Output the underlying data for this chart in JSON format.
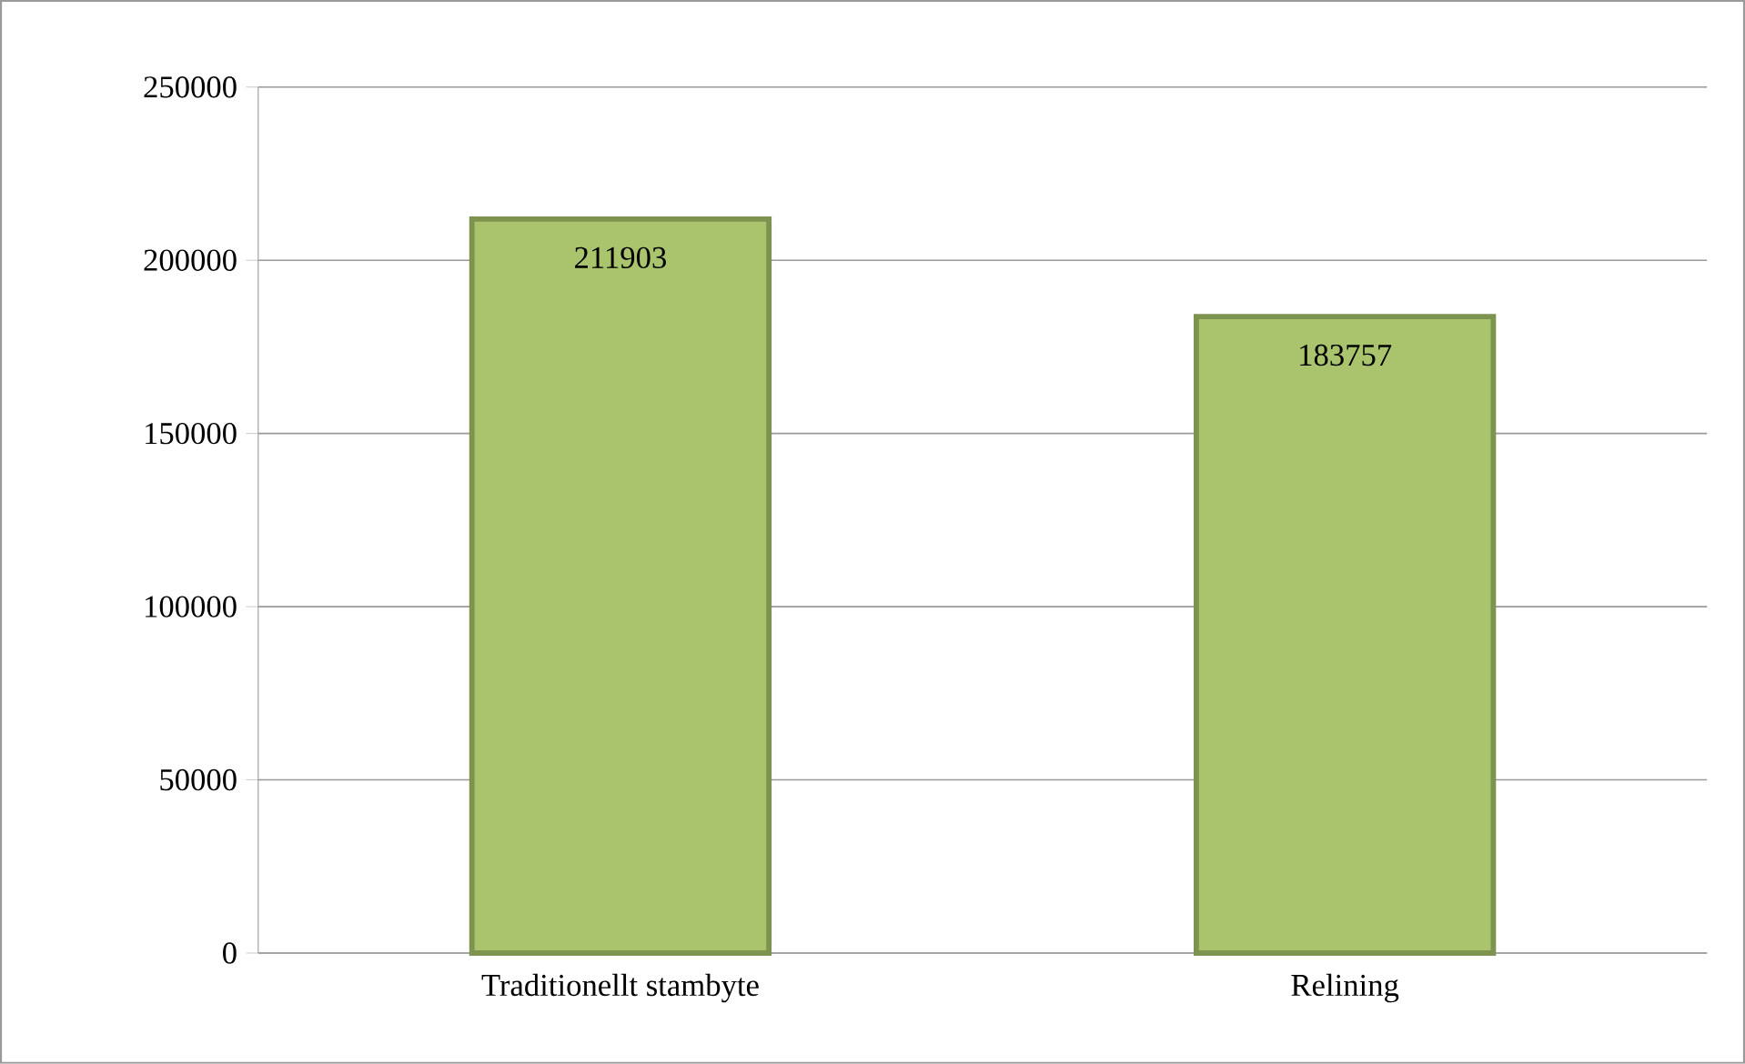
{
  "chart_data": {
    "type": "bar",
    "categories": [
      "Traditionellt stambyte",
      "Relining"
    ],
    "values": [
      211903,
      183757
    ],
    "color": "#a9c46c",
    "ylim": [
      0,
      250000
    ],
    "yticks": [
      0,
      50000,
      100000,
      150000,
      200000,
      250000
    ],
    "grid": "y",
    "data_labels": true
  }
}
